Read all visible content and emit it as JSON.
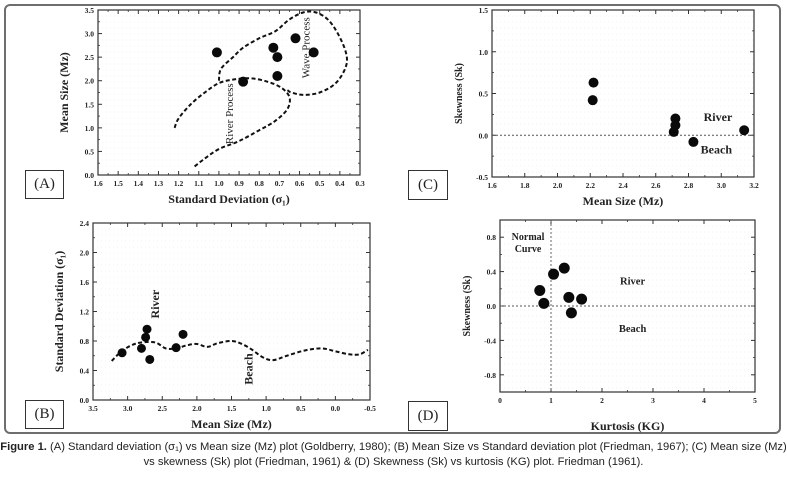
{
  "caption": {
    "lead": "Figure 1.",
    "text": " (A) Standard deviation (σ₁) vs Mean size (Mz) plot (Goldberry, 1980); (B) Mean Size vs Standard deviation plot (Friedman, 1967); (C) Mean size (Mz) vs skewness (Sk) plot (Friedman, 1961) & (D) Skewness (Sk) vs kurtosis (KG) plot. Friedman (1961)."
  },
  "chart_data": [
    {
      "id": "A",
      "panel_label": "(A)",
      "type": "scatter",
      "xlabel": "Standard Deviation (σ₁)",
      "ylabel": "Mean Size (Mz)",
      "xlim": [
        1.6,
        0.3
      ],
      "ylim": [
        0.0,
        3.5
      ],
      "xticks": [
        "1.6",
        "1.5",
        "1.4",
        "1.3",
        "1.2",
        "1.1",
        "1.0",
        "0.9",
        "0.8",
        "0.7",
        "0.6",
        "0.5",
        "0.4",
        "0.3"
      ],
      "yticks": [
        "0.0",
        "0.5",
        "1.0",
        "1.5",
        "2.0",
        "2.5",
        "3.0",
        "3.5"
      ],
      "points": [
        {
          "x": 1.01,
          "y": 2.6
        },
        {
          "x": 0.88,
          "y": 1.98
        },
        {
          "x": 0.73,
          "y": 2.7
        },
        {
          "x": 0.71,
          "y": 2.5
        },
        {
          "x": 0.71,
          "y": 2.1
        },
        {
          "x": 0.62,
          "y": 2.9
        },
        {
          "x": 0.53,
          "y": 2.6
        }
      ],
      "curves": [
        {
          "name": "Wave Process",
          "points": [
            [
              1.0,
              2.0
            ],
            [
              0.99,
              2.25
            ],
            [
              0.93,
              2.5
            ],
            [
              0.88,
              2.7
            ],
            [
              0.8,
              2.9
            ],
            [
              0.72,
              3.05
            ],
            [
              0.65,
              3.3
            ],
            [
              0.58,
              3.45
            ],
            [
              0.52,
              3.45
            ],
            [
              0.46,
              3.3
            ],
            [
              0.41,
              3.0
            ],
            [
              0.37,
              2.6
            ],
            [
              0.37,
              2.3
            ],
            [
              0.42,
              1.95
            ],
            [
              0.5,
              1.75
            ],
            [
              0.58,
              1.7
            ],
            [
              0.64,
              1.75
            ],
            [
              0.66,
              1.8
            ]
          ]
        },
        {
          "name": "River Process",
          "points": [
            [
              1.22,
              1.0
            ],
            [
              1.2,
              1.2
            ],
            [
              1.14,
              1.5
            ],
            [
              1.07,
              1.75
            ],
            [
              1.0,
              1.95
            ],
            [
              0.92,
              2.03
            ],
            [
              0.84,
              2.05
            ],
            [
              0.76,
              1.98
            ],
            [
              0.69,
              1.85
            ],
            [
              0.65,
              1.65
            ],
            [
              0.66,
              1.4
            ],
            [
              0.72,
              1.15
            ],
            [
              0.8,
              0.95
            ],
            [
              0.9,
              0.72
            ],
            [
              1.0,
              0.55
            ],
            [
              1.07,
              0.35
            ],
            [
              1.13,
              0.15
            ]
          ]
        }
      ],
      "annotations": [
        {
          "text": "Wave Process",
          "x": 0.55,
          "y": 2.7,
          "rotate": true
        },
        {
          "text": "River Process",
          "x": 0.93,
          "y": 1.3,
          "rotate": true
        }
      ]
    },
    {
      "id": "B",
      "panel_label": "(B)",
      "type": "scatter",
      "xlabel": "Mean Size (Mz)",
      "ylabel": "Standard Deviation (σ₁)",
      "xlim": [
        3.5,
        -0.5
      ],
      "ylim": [
        0.0,
        2.4
      ],
      "xticks": [
        "3.5",
        "3.0",
        "2.5",
        "2.0",
        "1.5",
        "1.0",
        "0.5",
        "0.0",
        "-0.5"
      ],
      "yticks": [
        "0.0",
        "0.4",
        "0.8",
        "1.2",
        "1.6",
        "2.0",
        "2.4"
      ],
      "points": [
        {
          "x": 3.08,
          "y": 0.64
        },
        {
          "x": 2.8,
          "y": 0.7
        },
        {
          "x": 2.74,
          "y": 0.85
        },
        {
          "x": 2.72,
          "y": 0.96
        },
        {
          "x": 2.68,
          "y": 0.55
        },
        {
          "x": 2.3,
          "y": 0.71
        },
        {
          "x": 2.2,
          "y": 0.89
        }
      ],
      "curves": [
        {
          "name": "River-Beach boundary",
          "points": [
            [
              3.23,
              0.53
            ],
            [
              3.1,
              0.65
            ],
            [
              2.95,
              0.74
            ],
            [
              2.8,
              0.78
            ],
            [
              2.6,
              0.78
            ],
            [
              2.45,
              0.7
            ],
            [
              2.3,
              0.7
            ],
            [
              2.15,
              0.74
            ],
            [
              2.0,
              0.76
            ],
            [
              1.85,
              0.72
            ],
            [
              1.7,
              0.77
            ],
            [
              1.5,
              0.8
            ],
            [
              1.35,
              0.76
            ],
            [
              1.2,
              0.68
            ],
            [
              1.05,
              0.58
            ],
            [
              0.9,
              0.54
            ],
            [
              0.7,
              0.6
            ],
            [
              0.45,
              0.67
            ],
            [
              0.2,
              0.7
            ],
            [
              0.0,
              0.66
            ],
            [
              -0.2,
              0.62
            ],
            [
              -0.35,
              0.62
            ],
            [
              -0.47,
              0.68
            ]
          ]
        }
      ],
      "annotations": [
        {
          "text": "River",
          "x": 2.55,
          "y": 1.3,
          "rotate": true
        },
        {
          "text": "Beach",
          "x": 1.2,
          "y": 0.42,
          "rotate": true
        }
      ]
    },
    {
      "id": "C",
      "panel_label": "(C)",
      "type": "scatter",
      "xlabel": "Mean Size (Mz)",
      "ylabel": "Skewness (Sk)",
      "xlim": [
        1.6,
        3.2
      ],
      "ylim": [
        -0.5,
        1.5
      ],
      "xticks": [
        "1.6",
        "1.8",
        "2.0",
        "2.2",
        "2.4",
        "2.6",
        "2.8",
        "3.0",
        "3.2"
      ],
      "yticks": [
        "-0.5",
        "0.0",
        "0.5",
        "1.0",
        "1.5"
      ],
      "reference_line_y": 0.0,
      "points": [
        {
          "x": 2.22,
          "y": 0.63
        },
        {
          "x": 2.215,
          "y": 0.42
        },
        {
          "x": 2.72,
          "y": 0.2
        },
        {
          "x": 2.72,
          "y": 0.12
        },
        {
          "x": 2.71,
          "y": 0.04
        },
        {
          "x": 2.83,
          "y": -0.08
        },
        {
          "x": 3.14,
          "y": 0.06
        }
      ],
      "annotations": [
        {
          "text": "River",
          "x": 2.98,
          "y": 0.17
        },
        {
          "text": "Beach",
          "x": 2.97,
          "y": -0.22
        }
      ]
    },
    {
      "id": "D",
      "panel_label": "(D)",
      "type": "scatter",
      "xlabel": "Kurtosis (KG)",
      "ylabel": "Skewness (Sk)",
      "xlim": [
        0,
        5
      ],
      "ylim": [
        -1.0,
        1.0
      ],
      "xticks": [
        "0",
        "1",
        "2",
        "3",
        "4",
        "5"
      ],
      "yticks": [
        "-0.8",
        "-0.4",
        "0.0",
        "0.4",
        "0.8"
      ],
      "reference_line_y": 0.0,
      "reference_line_x": 1.0,
      "points": [
        {
          "x": 0.78,
          "y": 0.18
        },
        {
          "x": 0.86,
          "y": 0.03
        },
        {
          "x": 1.05,
          "y": 0.37
        },
        {
          "x": 1.26,
          "y": 0.44
        },
        {
          "x": 1.35,
          "y": 0.1
        },
        {
          "x": 1.6,
          "y": 0.08
        },
        {
          "x": 1.4,
          "y": -0.08
        }
      ],
      "annotations": [
        {
          "text": "Normal",
          "x": 0.55,
          "y": 0.77
        },
        {
          "text": "Curve",
          "x": 0.55,
          "y": 0.63
        },
        {
          "text": "River",
          "x": 2.6,
          "y": 0.25
        },
        {
          "text": "Beach",
          "x": 2.6,
          "y": -0.3
        }
      ]
    }
  ]
}
